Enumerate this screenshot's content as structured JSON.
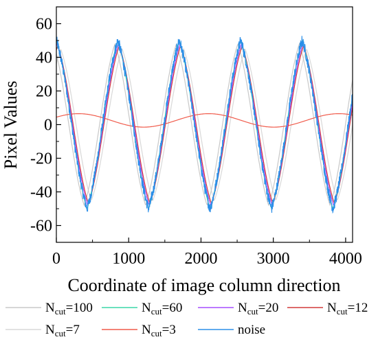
{
  "chart_data": {
    "type": "line",
    "title": "",
    "xlabel": "Coordinate of image column direction",
    "ylabel": "Pixel Values",
    "xlim": [
      0,
      4096
    ],
    "ylim": [
      -70,
      70
    ],
    "xticks": [
      0,
      1000,
      2000,
      3000,
      4000
    ],
    "yticks": [
      -60,
      -40,
      -20,
      0,
      20,
      40,
      60
    ],
    "grid": false,
    "legend_position": "bottom",
    "period": 850,
    "amplitude": 50,
    "series": [
      {
        "legend_main": "N",
        "legend_sub": "cut",
        "legend_tail": "=100",
        "color": "#c8c8c8",
        "amplitude": 48,
        "phase_shift": -40,
        "noise": 0
      },
      {
        "legend_main": "N",
        "legend_sub": "cut",
        "legend_tail": "=60",
        "color": "#3ad7a8",
        "amplitude": 50,
        "phase_shift": 0,
        "noise": 0
      },
      {
        "legend_main": "N",
        "legend_sub": "cut",
        "legend_tail": "=20",
        "color": "#a64dff",
        "amplitude": 48,
        "phase_shift": 10,
        "noise": 0
      },
      {
        "legend_main": "N",
        "legend_sub": "cut",
        "legend_tail": "=12",
        "color": "#d23a3a",
        "amplitude": 47,
        "phase_shift": 20,
        "noise": 0
      },
      {
        "legend_main": "N",
        "legend_sub": "cut",
        "legend_tail": "=7",
        "color": "#d8d8d8",
        "amplitude": 45,
        "phase_shift": 60,
        "noise": 0
      },
      {
        "legend_main": "N",
        "legend_sub": "cut",
        "legend_tail": "=3",
        "color": "#f05a4a",
        "amplitude": 4,
        "offset": 2.5,
        "period": 1800,
        "phase_shift": 0,
        "noise": 0
      },
      {
        "legend_main": "noise",
        "legend_sub": "",
        "legend_tail": "",
        "color": "#2b8fe8",
        "amplitude": 50,
        "phase_shift": 0,
        "noise": 3.5
      }
    ]
  }
}
